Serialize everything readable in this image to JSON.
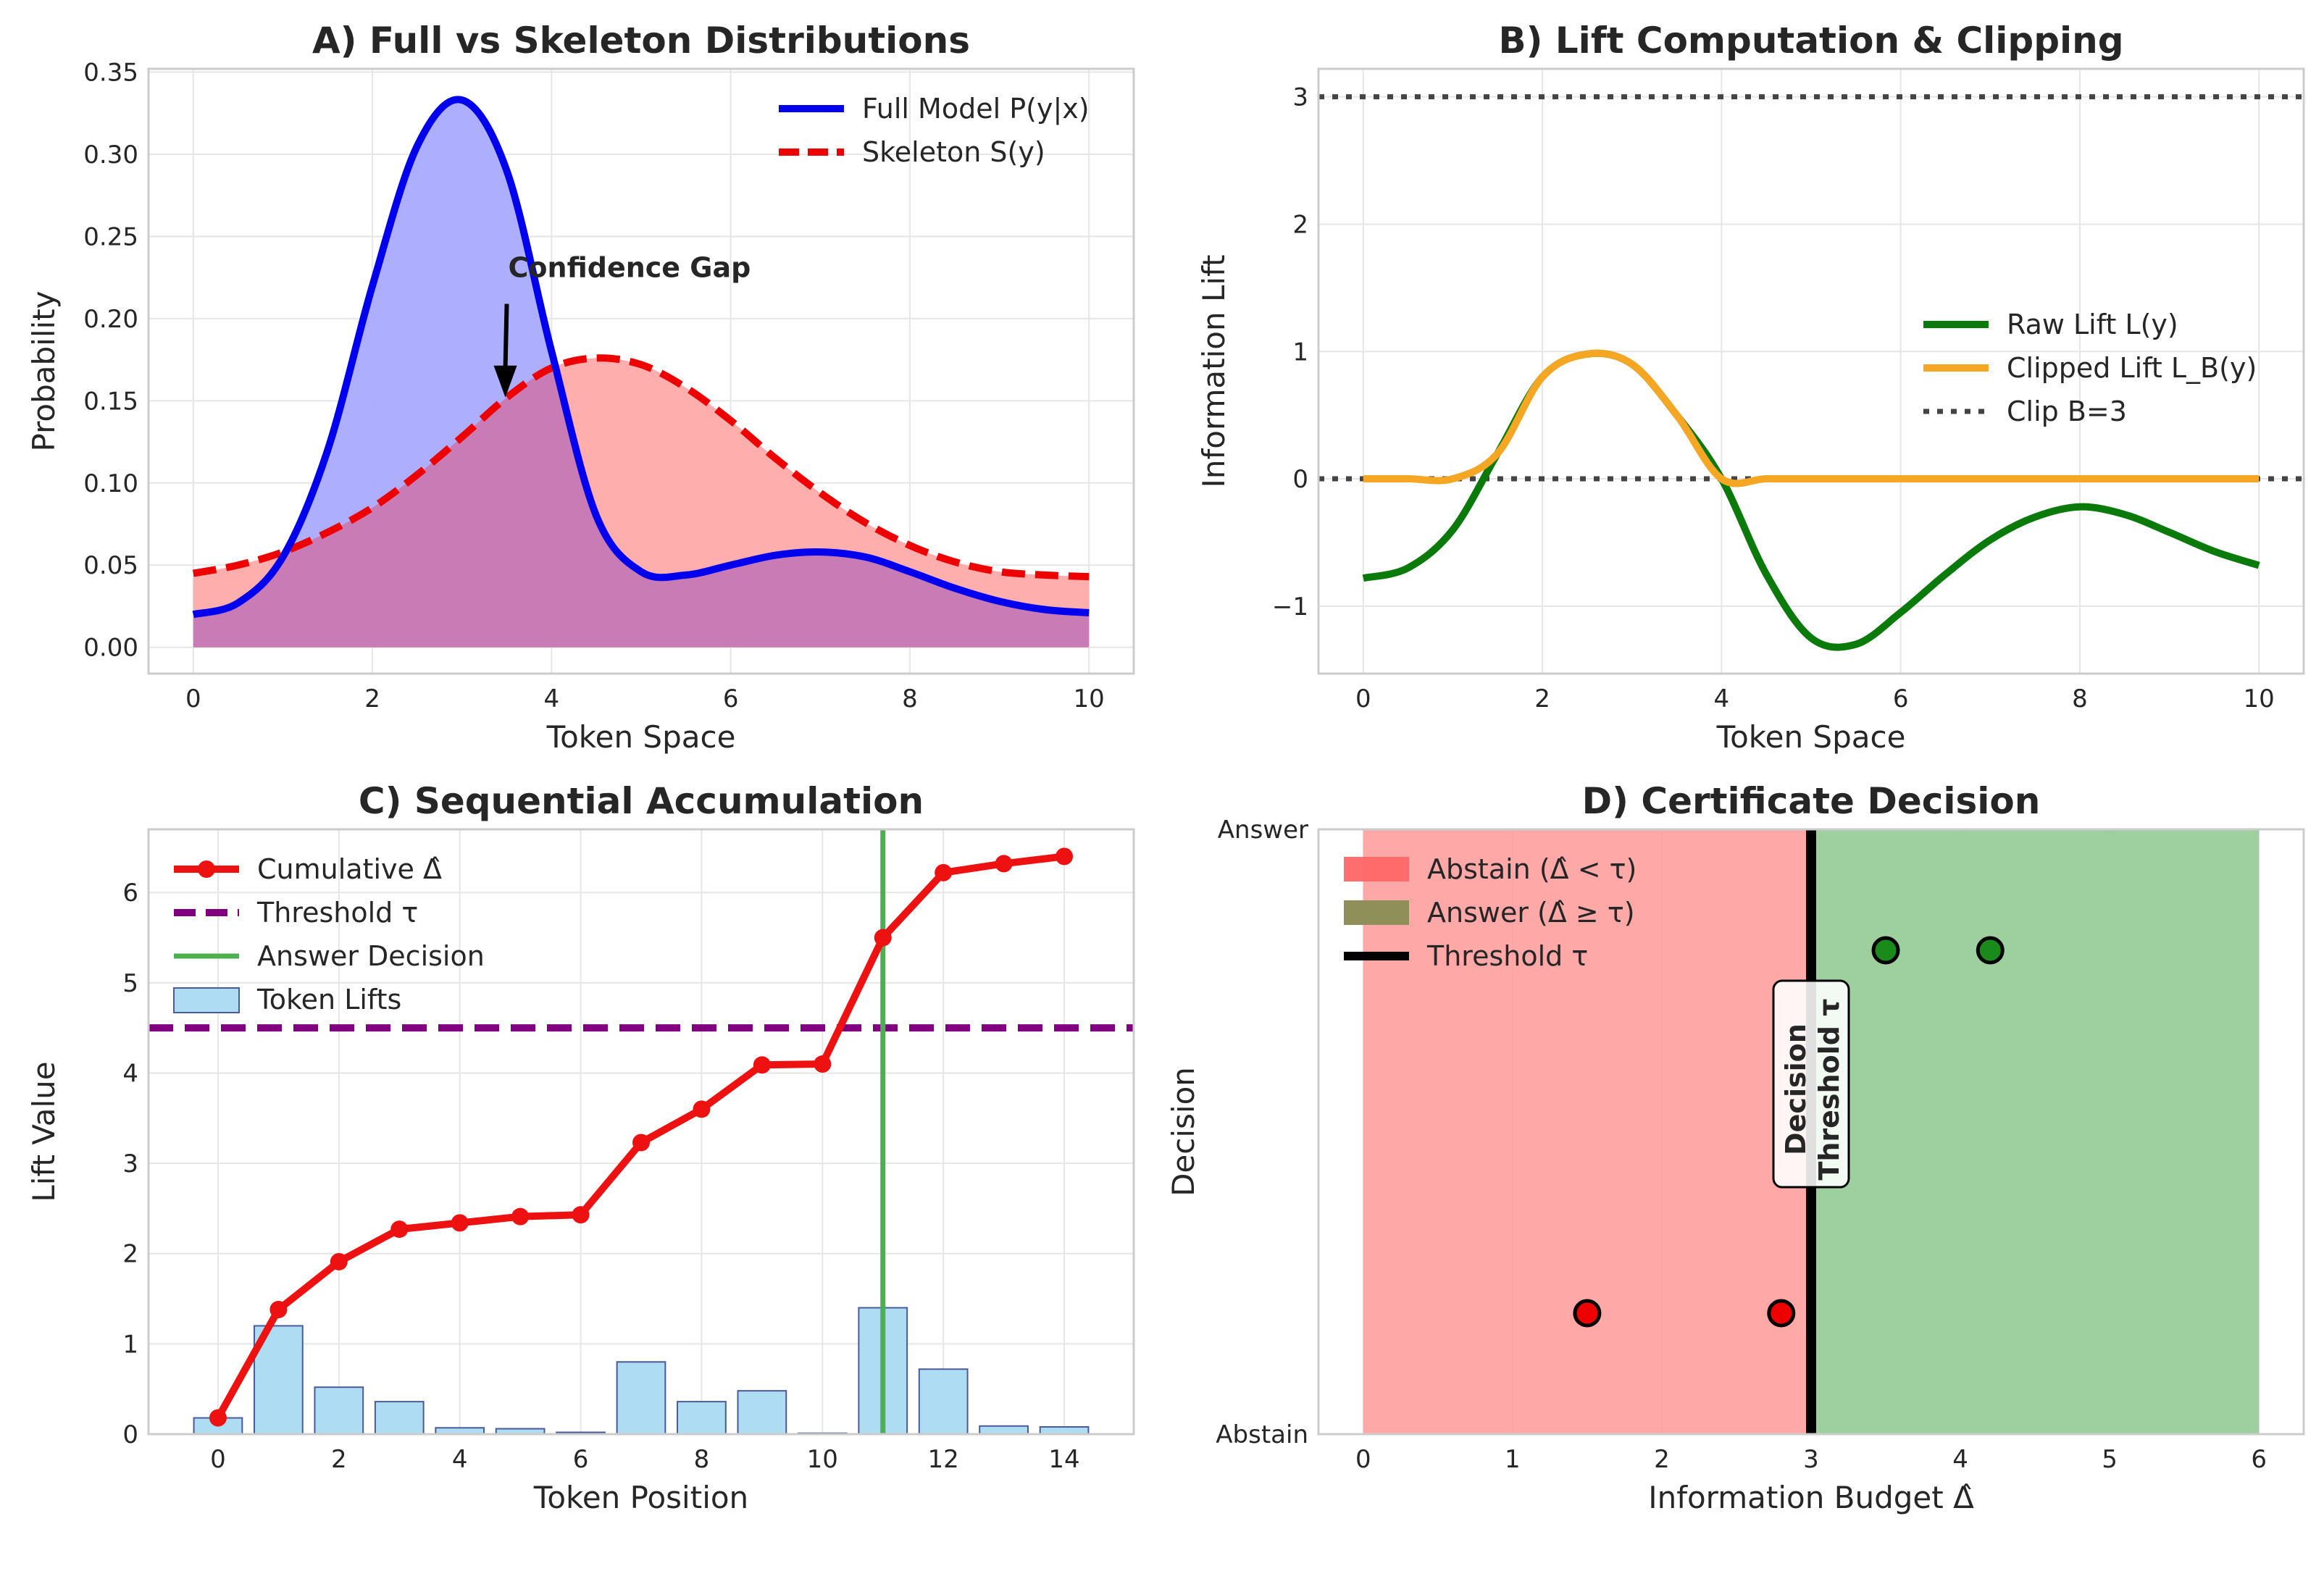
{
  "colors": {
    "full": "#0000ee",
    "full_fill": "#aaaaff",
    "skeleton": "#ee0000",
    "skeleton_fill": "#ffaaaa",
    "overlap_fill": "#c87bb5",
    "raw_lift": "#0a7a0a",
    "clipped_lift": "#f5a623",
    "clip_line": "#444444",
    "cumulative": "#ee1111",
    "threshold_line": "#800080",
    "answer_decision": "#4caf50",
    "bars": "#aedcf2",
    "bar_edge": "#4a5a9a",
    "abstain_region": "#ff9999",
    "answer_region": "#99cc99",
    "abstain_point": "#ee0000",
    "answer_point": "#1a8a1a",
    "threshold_tau": "#000000",
    "grid": "#e6e6e6",
    "frame": "#cccccc"
  },
  "chart_data": [
    {
      "id": "A",
      "type": "area",
      "title": "A) Full vs Skeleton Distributions",
      "xlabel": "Token Space",
      "ylabel": "Probability",
      "xlim": [
        -0.5,
        10.5
      ],
      "ylim": [
        -0.016,
        0.352
      ],
      "xticks": [
        0,
        2,
        4,
        6,
        8,
        10
      ],
      "yticks": [
        0.0,
        0.05,
        0.1,
        0.15,
        0.2,
        0.25,
        0.3,
        0.35
      ],
      "ytick_labels": [
        "0.00",
        "0.05",
        "0.10",
        "0.15",
        "0.20",
        "0.25",
        "0.30",
        "0.35"
      ],
      "series": [
        {
          "name": "Full Model P(y|x)",
          "x": [
            0,
            0.5,
            1,
            1.5,
            2,
            2.5,
            3,
            3.5,
            4,
            4.5,
            5,
            5.5,
            6,
            6.5,
            7,
            7.5,
            8,
            8.5,
            9,
            9.5,
            10
          ],
          "y": [
            0.02,
            0.027,
            0.055,
            0.12,
            0.22,
            0.305,
            0.333,
            0.29,
            0.18,
            0.08,
            0.046,
            0.044,
            0.05,
            0.056,
            0.058,
            0.055,
            0.046,
            0.036,
            0.028,
            0.023,
            0.021
          ]
        },
        {
          "name": "Skeleton S(y)",
          "x": [
            0,
            0.5,
            1,
            1.5,
            2,
            2.5,
            3,
            3.5,
            4,
            4.5,
            5,
            5.5,
            6,
            6.5,
            7,
            7.5,
            8,
            8.5,
            9,
            9.5,
            10
          ],
          "y": [
            0.045,
            0.05,
            0.058,
            0.07,
            0.085,
            0.105,
            0.128,
            0.152,
            0.17,
            0.176,
            0.172,
            0.158,
            0.138,
            0.115,
            0.094,
            0.076,
            0.062,
            0.052,
            0.046,
            0.044,
            0.043
          ]
        }
      ],
      "legend": [
        "Full Model P(y|x)",
        "Skeleton S(y)"
      ],
      "legend_position": "top-right",
      "annotation": {
        "text": "Confidence Gap",
        "x": 3.5,
        "y": 0.22,
        "arrow_to_x": 3.5,
        "arrow_to_y": 0.152
      }
    },
    {
      "id": "B",
      "type": "line",
      "title": "B) Lift Computation & Clipping",
      "xlabel": "Token Space",
      "ylabel": "Information Lift",
      "xlim": [
        -0.5,
        10.5
      ],
      "ylim": [
        -1.53,
        3.22
      ],
      "xticks": [
        0,
        2,
        4,
        6,
        8,
        10
      ],
      "yticks": [
        -1,
        0,
        1,
        2,
        3
      ],
      "ytick_labels": [
        "−1",
        "0",
        "1",
        "2",
        "3"
      ],
      "series": [
        {
          "name": "Raw Lift L(y)",
          "x": [
            0,
            0.5,
            1,
            1.5,
            2,
            2.5,
            3,
            3.5,
            4,
            4.5,
            5,
            5.5,
            6,
            6.5,
            7,
            7.5,
            8,
            8.5,
            9,
            9.5,
            10
          ],
          "y": [
            -0.78,
            -0.7,
            -0.4,
            0.2,
            0.8,
            0.98,
            0.9,
            0.5,
            0.0,
            -0.75,
            -1.25,
            -1.3,
            -1.05,
            -0.75,
            -0.48,
            -0.3,
            -0.22,
            -0.28,
            -0.42,
            -0.57,
            -0.68
          ]
        },
        {
          "name": "Clipped Lift L_B(y)",
          "x": [
            0,
            0.5,
            1,
            1.5,
            2,
            2.5,
            3,
            3.5,
            4,
            4.5,
            5,
            5.5,
            6,
            6.5,
            7,
            7.5,
            8,
            8.5,
            9,
            9.5,
            10
          ],
          "y": [
            0,
            0,
            0,
            0.2,
            0.8,
            0.98,
            0.9,
            0.5,
            0.0,
            0,
            0,
            0,
            0,
            0,
            0,
            0,
            0,
            0,
            0,
            0,
            0
          ]
        }
      ],
      "reference_lines": [
        {
          "name": "Clip B=3",
          "y": 3
        },
        {
          "name": "",
          "y": 0
        }
      ],
      "legend": [
        "Raw Lift L(y)",
        "Clipped Lift L_B(y)",
        "Clip B=3"
      ],
      "legend_position": "center-right"
    },
    {
      "id": "C",
      "type": "bar",
      "title": "C) Sequential Accumulation",
      "xlabel": "Token Position",
      "ylabel": "Lift Value",
      "xlim": [
        -1.15,
        15.15
      ],
      "ylim": [
        0,
        6.7
      ],
      "xticks": [
        0,
        2,
        4,
        6,
        8,
        10,
        12,
        14
      ],
      "yticks": [
        0,
        1,
        2,
        3,
        4,
        5,
        6
      ],
      "categories": [
        0,
        1,
        2,
        3,
        4,
        5,
        6,
        7,
        8,
        9,
        10,
        11,
        12,
        13,
        14
      ],
      "series": [
        {
          "name": "Token Lifts",
          "type": "bar",
          "values": [
            0.18,
            1.2,
            0.52,
            0.36,
            0.07,
            0.06,
            0.02,
            0.8,
            0.36,
            0.48,
            0.01,
            1.4,
            0.72,
            0.09,
            0.08
          ]
        },
        {
          "name": "Cumulative Δ̂",
          "type": "line",
          "values": [
            0.18,
            1.38,
            1.91,
            2.27,
            2.34,
            2.41,
            2.43,
            3.23,
            3.6,
            4.09,
            4.1,
            5.5,
            6.22,
            6.32,
            6.4
          ]
        }
      ],
      "threshold": {
        "name": "Threshold τ",
        "y": 4.5
      },
      "answer_decision": {
        "name": "Answer Decision",
        "x": 11
      },
      "legend": [
        "Cumulative Δ̂",
        "Threshold τ",
        "Answer Decision",
        "Token Lifts"
      ],
      "legend_position": "top-left"
    },
    {
      "id": "D",
      "type": "scatter",
      "title": "D) Certificate Decision",
      "xlabel": "Information Budget Δ̂",
      "ylabel": "Decision",
      "xlim": [
        -0.3,
        6.3
      ],
      "ylim": [
        0,
        1
      ],
      "xticks": [
        0,
        1,
        2,
        3,
        4,
        5,
        6
      ],
      "ytick_labels": [
        "Abstain",
        "Answer"
      ],
      "regions": [
        {
          "name": "Abstain (Δ̂ < τ)",
          "x0": 0,
          "x1": 3
        },
        {
          "name": "Answer (Δ̂ ≥ τ)",
          "x0": 3,
          "x1": 6
        }
      ],
      "threshold": {
        "name": "Threshold τ",
        "x": 3
      },
      "points": [
        {
          "x": 1.5,
          "y": 0.2,
          "class": "abstain"
        },
        {
          "x": 2.8,
          "y": 0.2,
          "class": "abstain"
        },
        {
          "x": 3.5,
          "y": 0.8,
          "class": "answer"
        },
        {
          "x": 4.2,
          "y": 0.8,
          "class": "answer"
        }
      ],
      "threshold_label": "Decision\nThreshold τ",
      "legend": [
        "Abstain (Δ̂ < τ)",
        "Answer (Δ̂ ≥ τ)",
        "Threshold τ"
      ],
      "legend_position": "top-left"
    }
  ]
}
